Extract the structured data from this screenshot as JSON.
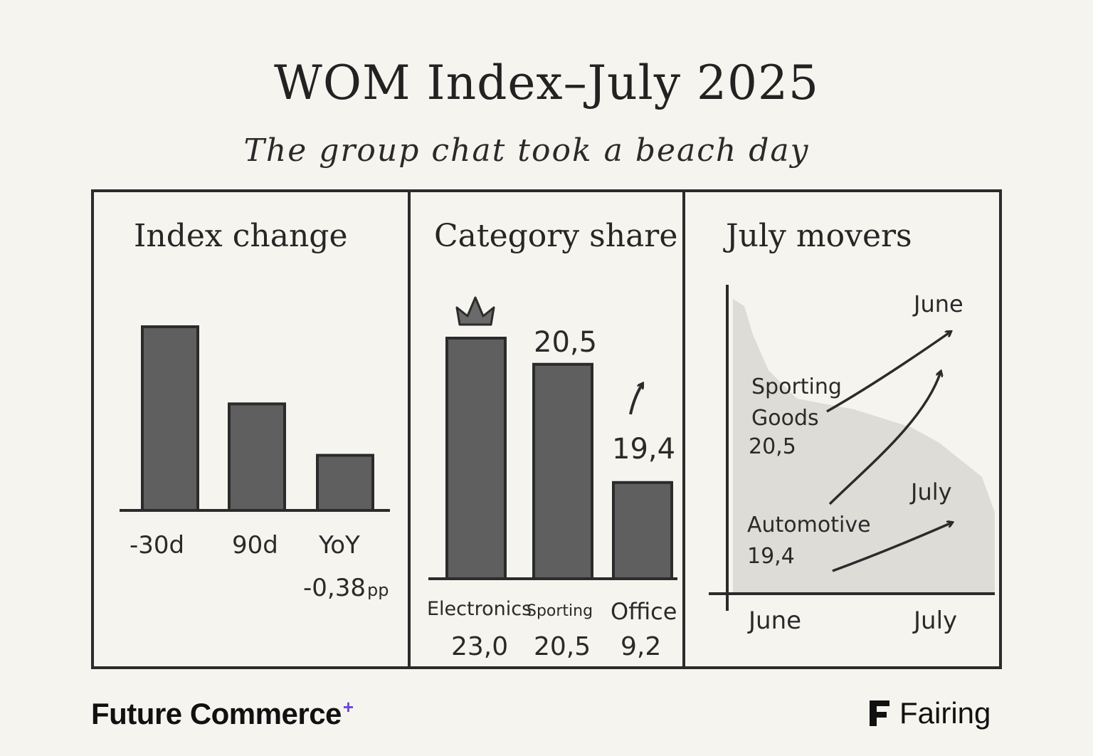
{
  "title": "WOM Index–July 2025",
  "subtitle": "The group chat took a beach day",
  "brands": {
    "left": "Future Commerce",
    "left_mark": "+",
    "right": "Fairing",
    "right_icon": "fairing-logo-icon"
  },
  "chart_data": [
    {
      "type": "bar",
      "title": "Index change",
      "categories": [
        "-30d",
        "90d",
        "YoY"
      ],
      "values": [
        1.0,
        0.58,
        0.3
      ],
      "annotations": [
        {
          "category": "YoY",
          "text": "-0,38",
          "unit": "pp"
        }
      ],
      "bar_color": "#5f5f5f"
    },
    {
      "type": "bar",
      "title": "Category share",
      "categories": [
        "Electronics",
        "Sporting",
        "Office"
      ],
      "values": [
        23.0,
        20.5,
        9.2
      ],
      "value_labels": [
        "23,0",
        "20,5",
        "9,2"
      ],
      "top_labels": [
        "",
        "20,5",
        "19,4"
      ],
      "leader_icon": "crown-icon",
      "trend_icon": "up-arrow-icon",
      "bar_color": "#5f5f5f"
    },
    {
      "type": "line",
      "title": "July movers",
      "x": [
        "June",
        "July"
      ],
      "series": [
        {
          "name": "Sporting Goods",
          "value_label": "20,5",
          "end_label": "June"
        },
        {
          "name": "Automotive",
          "value_label": "19,4",
          "end_label": "July"
        }
      ]
    }
  ]
}
